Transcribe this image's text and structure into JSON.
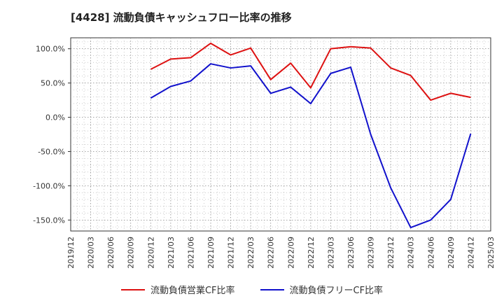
{
  "chart_data": {
    "type": "line",
    "title": "[4428]  流動負債キャッシュフロー比率の推移",
    "xlabel": "",
    "ylabel": "",
    "x_ticks": [
      "2019/12",
      "2020/03",
      "2020/06",
      "2020/09",
      "2020/12",
      "2021/03",
      "2021/06",
      "2021/09",
      "2021/12",
      "2022/03",
      "2022/06",
      "2022/09",
      "2022/12",
      "2023/03",
      "2023/06",
      "2023/09",
      "2023/12",
      "2024/03",
      "2024/06",
      "2024/09",
      "2024/12",
      "2025/03"
    ],
    "y_ticks": [
      100,
      50,
      0,
      -50,
      -100,
      -150
    ],
    "y_tick_labels": [
      "100.0%",
      "50.0%",
      "0.0%",
      "-50.0%",
      "-100.0%",
      "-150.0%"
    ],
    "ylim": [
      -166,
      116
    ],
    "grid": true,
    "legend_position": "bottom",
    "series": [
      {
        "name": "流動負債営業CF比率",
        "color": "#dd1111",
        "points": [
          [
            "2020/12",
            70
          ],
          [
            "2021/03",
            85
          ],
          [
            "2021/06",
            87
          ],
          [
            "2021/09",
            108
          ],
          [
            "2021/12",
            91
          ],
          [
            "2022/03",
            101
          ],
          [
            "2022/06",
            55
          ],
          [
            "2022/09",
            79
          ],
          [
            "2022/12",
            43
          ],
          [
            "2023/03",
            100
          ],
          [
            "2023/06",
            103
          ],
          [
            "2023/09",
            101
          ],
          [
            "2023/12",
            72
          ],
          [
            "2024/03",
            61
          ],
          [
            "2024/06",
            25
          ],
          [
            "2024/09",
            35
          ],
          [
            "2024/12",
            29
          ]
        ]
      },
      {
        "name": "流動負債フリーCF比率",
        "color": "#1111cc",
        "points": [
          [
            "2020/12",
            28
          ],
          [
            "2021/03",
            45
          ],
          [
            "2021/06",
            53
          ],
          [
            "2021/09",
            78
          ],
          [
            "2021/12",
            72
          ],
          [
            "2022/03",
            75
          ],
          [
            "2022/06",
            35
          ],
          [
            "2022/09",
            44
          ],
          [
            "2022/12",
            20
          ],
          [
            "2023/03",
            64
          ],
          [
            "2023/06",
            73
          ],
          [
            "2023/09",
            -25
          ],
          [
            "2023/12",
            -103
          ],
          [
            "2024/03",
            -161
          ],
          [
            "2024/06",
            -150
          ],
          [
            "2024/09",
            -120
          ],
          [
            "2024/12",
            -24
          ]
        ]
      }
    ]
  }
}
